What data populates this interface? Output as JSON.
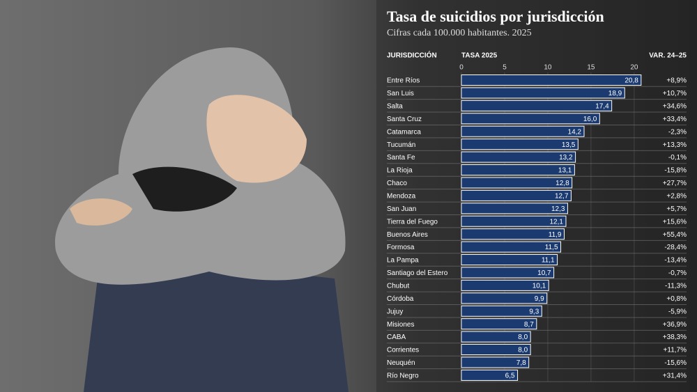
{
  "chart_data": {
    "type": "bar",
    "title": "Tasa de suicidios por jurisdicción",
    "subtitle": "Cifras cada 100.000 habitantes. 2025",
    "column_headers": [
      "JURISDICCIÓN",
      "TASA 2025",
      "VAR. 24–25"
    ],
    "categories": [
      "Entre Ríos",
      "San Luis",
      "Salta",
      "Santa Cruz",
      "Catamarca",
      "Tucumán",
      "Santa Fe",
      "La Rioja",
      "Chaco",
      "Mendoza",
      "San Juan",
      "Tierra del Fuego",
      "Buenos Aires",
      "Formosa",
      "La Pampa",
      "Santiago del Estero",
      "Chubut",
      "Córdoba",
      "Jujuy",
      "Misiones",
      "CABA",
      "Corrientes",
      "Neuquén",
      "Río Negro"
    ],
    "values": [
      20.8,
      18.9,
      17.4,
      16.0,
      14.2,
      13.5,
      13.2,
      13.1,
      12.8,
      12.7,
      12.3,
      12.1,
      11.9,
      11.5,
      11.1,
      10.7,
      10.1,
      9.9,
      9.3,
      8.7,
      8.0,
      8.0,
      7.8,
      6.5
    ],
    "value_labels": [
      "20,8",
      "18,9",
      "17,4",
      "16,0",
      "14,2",
      "13,5",
      "13,2",
      "13,1",
      "12,8",
      "12,7",
      "12,3",
      "12,1",
      "11,9",
      "11,5",
      "11,1",
      "10,7",
      "10,1",
      "9,9",
      "9,3",
      "8,7",
      "8,0",
      "8,0",
      "7,8",
      "6,5"
    ],
    "variation": [
      "+8,9%",
      "+10,7%",
      "+34,6%",
      "+33,4%",
      "-2,3%",
      "+13,3%",
      "-0,1%",
      "-15,8%",
      "+27,7%",
      "+2,8%",
      "+5,7%",
      "+15,6%",
      "+55,4%",
      "-28,4%",
      "-13,4%",
      "-0,7%",
      "-11,3%",
      "+0,8%",
      "-5,9%",
      "+36,9%",
      "+38,3%",
      "+11,7%",
      "-15,6%",
      "+31,4%"
    ],
    "color": "#1b3a70",
    "xlim": [
      0,
      21.3
    ],
    "xticks": [
      0,
      5,
      10,
      15,
      20
    ],
    "grid": true
  }
}
